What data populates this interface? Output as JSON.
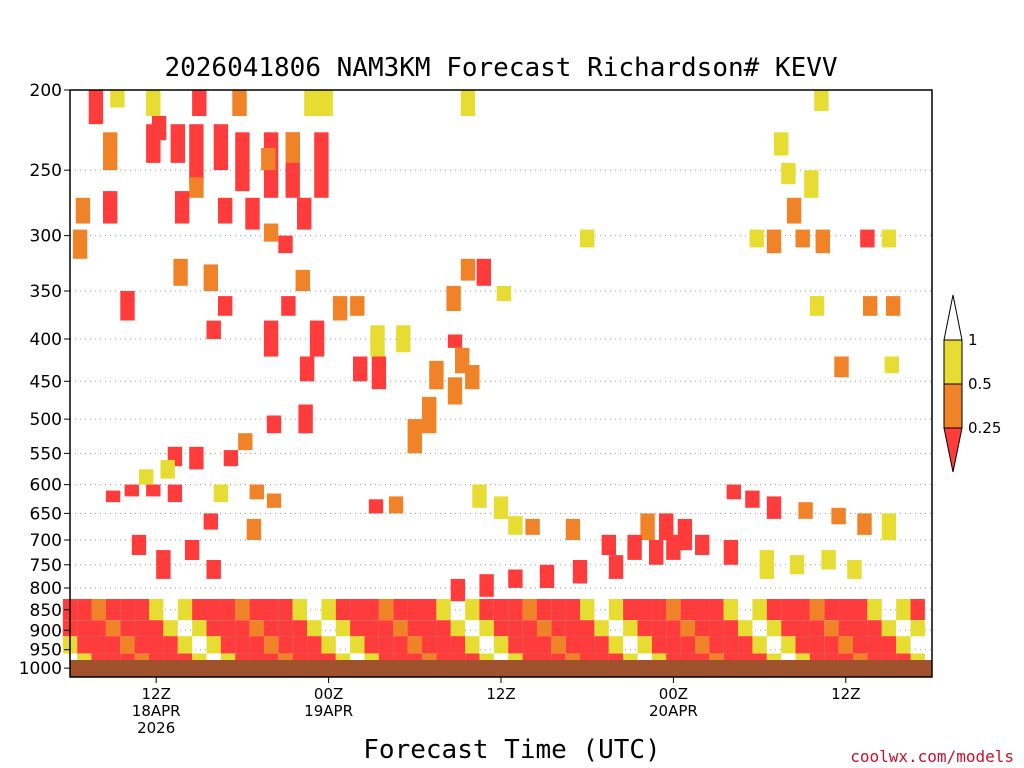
{
  "chart_data": {
    "type": "heatmap",
    "title": "2026041806 NAM3KM Forecast Richardson# KEVV",
    "xlabel": "Forecast Time (UTC)",
    "ylabel": "",
    "credit": "coolwx.com/models",
    "x_range_hours": [
      0,
      60
    ],
    "y_range_hpa": [
      200,
      1025
    ],
    "y_scale": "log",
    "y_ticks": [
      200,
      250,
      300,
      350,
      400,
      450,
      500,
      550,
      600,
      650,
      700,
      750,
      800,
      850,
      900,
      950,
      1000
    ],
    "x_ticks": [
      {
        "hour": 6,
        "line1": "12Z",
        "line2": "18APR",
        "line3": "2026"
      },
      {
        "hour": 18,
        "line1": "00Z",
        "line2": "19APR",
        "line3": ""
      },
      {
        "hour": 30,
        "line1": "12Z",
        "line2": "",
        "line3": ""
      },
      {
        "hour": 42,
        "line1": "00Z",
        "line2": "20APR",
        "line3": ""
      },
      {
        "hour": 54,
        "line1": "12Z",
        "line2": "",
        "line3": ""
      }
    ],
    "gridlines": "dotted",
    "legend": {
      "placement": "right",
      "labels": [
        "1",
        "0.5",
        "0.25"
      ],
      "colors": {
        "high": "#ffffff",
        "mid": "#e6dc32",
        "low": "#f08228",
        "lowest": "#ff3c3c"
      }
    },
    "ground_color": "#a0522d",
    "categories": {
      "yellow": "0.5-1",
      "orange": "0.25-0.5",
      "red": "<0.25"
    },
    "cells": [
      [
        1.8,
        200,
        220,
        "red"
      ],
      [
        3.3,
        200,
        210,
        "yellow"
      ],
      [
        5.8,
        200,
        215,
        "yellow"
      ],
      [
        6.2,
        215,
        230,
        "red"
      ],
      [
        9.0,
        200,
        215,
        "red"
      ],
      [
        11.8,
        200,
        215,
        "orange"
      ],
      [
        16.8,
        200,
        215,
        "yellow"
      ],
      [
        17.8,
        200,
        215,
        "yellow"
      ],
      [
        27.7,
        200,
        215,
        "yellow"
      ],
      [
        52.3,
        200,
        212,
        "yellow"
      ],
      [
        5.8,
        220,
        245,
        "red"
      ],
      [
        7.5,
        220,
        245,
        "red"
      ],
      [
        8.8,
        220,
        260,
        "red"
      ],
      [
        10.5,
        220,
        250,
        "red"
      ],
      [
        12.0,
        225,
        265,
        "red"
      ],
      [
        14.0,
        225,
        270,
        "red"
      ],
      [
        15.5,
        225,
        270,
        "red"
      ],
      [
        17.5,
        225,
        270,
        "red"
      ],
      [
        13.8,
        235,
        250,
        "orange"
      ],
      [
        15.5,
        225,
        245,
        "orange"
      ],
      [
        2.8,
        225,
        250,
        "orange"
      ],
      [
        49.5,
        225,
        240,
        "yellow"
      ],
      [
        8.8,
        255,
        270,
        "orange"
      ],
      [
        2.8,
        265,
        290,
        "red"
      ],
      [
        7.8,
        265,
        290,
        "red"
      ],
      [
        10.8,
        270,
        290,
        "red"
      ],
      [
        16.3,
        270,
        295,
        "red"
      ],
      [
        12.7,
        270,
        295,
        "red"
      ],
      [
        0.9,
        270,
        290,
        "orange"
      ],
      [
        50.0,
        245,
        260,
        "yellow"
      ],
      [
        50.4,
        270,
        290,
        "orange"
      ],
      [
        51.6,
        250,
        270,
        "yellow"
      ],
      [
        0.7,
        295,
        320,
        "orange"
      ],
      [
        14.0,
        290,
        305,
        "orange"
      ],
      [
        15.0,
        300,
        315,
        "red"
      ],
      [
        36.0,
        295,
        310,
        "yellow"
      ],
      [
        47.8,
        295,
        310,
        "yellow"
      ],
      [
        49.0,
        295,
        315,
        "orange"
      ],
      [
        51.0,
        295,
        310,
        "orange"
      ],
      [
        52.4,
        295,
        315,
        "orange"
      ],
      [
        55.5,
        295,
        310,
        "red"
      ],
      [
        57.0,
        295,
        310,
        "yellow"
      ],
      [
        7.7,
        320,
        345,
        "orange"
      ],
      [
        9.8,
        325,
        350,
        "orange"
      ],
      [
        27.7,
        320,
        340,
        "orange"
      ],
      [
        28.8,
        320,
        345,
        "red"
      ],
      [
        16.2,
        330,
        350,
        "orange"
      ],
      [
        26.7,
        345,
        370,
        "orange"
      ],
      [
        30.2,
        345,
        360,
        "yellow"
      ],
      [
        55.7,
        355,
        375,
        "orange"
      ],
      [
        57.3,
        355,
        375,
        "orange"
      ],
      [
        52.0,
        355,
        375,
        "yellow"
      ],
      [
        4.0,
        350,
        380,
        "red"
      ],
      [
        10.8,
        355,
        375,
        "red"
      ],
      [
        15.2,
        355,
        375,
        "red"
      ],
      [
        18.8,
        355,
        380,
        "orange"
      ],
      [
        20.0,
        355,
        375,
        "orange"
      ],
      [
        14.0,
        380,
        420,
        "red"
      ],
      [
        10.0,
        380,
        400,
        "red"
      ],
      [
        17.2,
        380,
        420,
        "red"
      ],
      [
        21.4,
        385,
        420,
        "yellow"
      ],
      [
        23.2,
        385,
        415,
        "yellow"
      ],
      [
        26.8,
        395,
        410,
        "red"
      ],
      [
        27.3,
        410,
        440,
        "orange"
      ],
      [
        16.5,
        420,
        450,
        "red"
      ],
      [
        20.2,
        420,
        450,
        "red"
      ],
      [
        21.5,
        420,
        460,
        "red"
      ],
      [
        25.5,
        425,
        460,
        "orange"
      ],
      [
        26.8,
        445,
        480,
        "orange"
      ],
      [
        28.0,
        430,
        460,
        "orange"
      ],
      [
        53.7,
        420,
        445,
        "orange"
      ],
      [
        57.2,
        420,
        440,
        "yellow"
      ],
      [
        25.0,
        470,
        520,
        "orange"
      ],
      [
        24.0,
        500,
        550,
        "orange"
      ],
      [
        16.4,
        480,
        520,
        "red"
      ],
      [
        14.2,
        495,
        520,
        "red"
      ],
      [
        12.2,
        520,
        545,
        "orange"
      ],
      [
        7.3,
        540,
        570,
        "red"
      ],
      [
        8.8,
        540,
        575,
        "red"
      ],
      [
        11.2,
        545,
        570,
        "red"
      ],
      [
        6.8,
        560,
        590,
        "yellow"
      ],
      [
        5.3,
        575,
        600,
        "yellow"
      ],
      [
        4.3,
        600,
        620,
        "red"
      ],
      [
        5.8,
        600,
        620,
        "red"
      ],
      [
        3.0,
        610,
        630,
        "red"
      ],
      [
        7.3,
        600,
        630,
        "red"
      ],
      [
        10.5,
        600,
        630,
        "yellow"
      ],
      [
        13.0,
        600,
        625,
        "orange"
      ],
      [
        14.2,
        615,
        640,
        "orange"
      ],
      [
        21.3,
        625,
        650,
        "red"
      ],
      [
        22.7,
        620,
        650,
        "orange"
      ],
      [
        28.5,
        600,
        640,
        "yellow"
      ],
      [
        30.0,
        620,
        660,
        "yellow"
      ],
      [
        46.2,
        600,
        625,
        "red"
      ],
      [
        47.5,
        610,
        640,
        "red"
      ],
      [
        49.0,
        620,
        660,
        "red"
      ],
      [
        51.2,
        630,
        660,
        "orange"
      ],
      [
        53.5,
        640,
        670,
        "orange"
      ],
      [
        55.3,
        650,
        690,
        "orange"
      ],
      [
        57.0,
        650,
        700,
        "yellow"
      ],
      [
        31.0,
        655,
        690,
        "yellow"
      ],
      [
        32.2,
        660,
        690,
        "orange"
      ],
      [
        35.0,
        660,
        700,
        "orange"
      ],
      [
        40.2,
        650,
        700,
        "orange"
      ],
      [
        41.5,
        650,
        700,
        "red"
      ],
      [
        42.8,
        660,
        720,
        "red"
      ],
      [
        9.8,
        650,
        680,
        "red"
      ],
      [
        12.8,
        660,
        700,
        "orange"
      ],
      [
        37.5,
        690,
        730,
        "red"
      ],
      [
        39.3,
        690,
        740,
        "red"
      ],
      [
        40.8,
        700,
        750,
        "red"
      ],
      [
        42.0,
        690,
        740,
        "red"
      ],
      [
        44.0,
        690,
        730,
        "red"
      ],
      [
        46.0,
        700,
        750,
        "red"
      ],
      [
        38.0,
        730,
        780,
        "red"
      ],
      [
        35.5,
        740,
        790,
        "red"
      ],
      [
        33.2,
        750,
        800,
        "red"
      ],
      [
        31.0,
        760,
        800,
        "red"
      ],
      [
        29.0,
        770,
        820,
        "red"
      ],
      [
        27.0,
        780,
        830,
        "red"
      ],
      [
        48.5,
        720,
        780,
        "yellow"
      ],
      [
        50.6,
        730,
        770,
        "yellow"
      ],
      [
        52.8,
        720,
        760,
        "yellow"
      ],
      [
        54.6,
        740,
        780,
        "yellow"
      ],
      [
        6.5,
        720,
        780,
        "red"
      ],
      [
        8.5,
        700,
        740,
        "red"
      ],
      [
        10.0,
        740,
        780,
        "red"
      ],
      [
        4.8,
        690,
        730,
        "red"
      ]
    ]
  }
}
